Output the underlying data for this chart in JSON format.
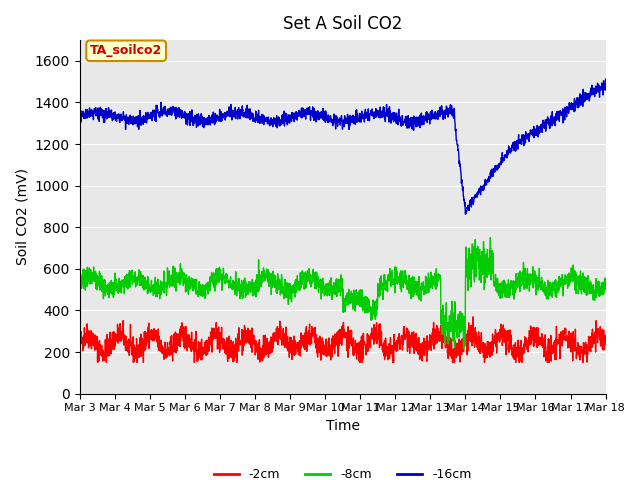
{
  "title": "Set A Soil CO2",
  "xlabel": "Time",
  "ylabel": "Soil CO2 (mV)",
  "ylim": [
    0,
    1700
  ],
  "yticks": [
    0,
    200,
    400,
    600,
    800,
    1000,
    1200,
    1400,
    1600
  ],
  "x_labels": [
    "Mar 3",
    "Mar 4",
    "Mar 5",
    "Mar 6",
    "Mar 7",
    "Mar 8",
    "Mar 9",
    "Mar 10",
    "Mar 11",
    "Mar 12",
    "Mar 13",
    "Mar 14",
    "Mar 15",
    "Mar 16",
    "Mar 17",
    "Mar 18"
  ],
  "colors": {
    "red": "#ff0000",
    "green": "#00cc00",
    "blue": "#0000cc"
  },
  "annotation_text": "TA_soilco2",
  "annotation_bg": "#ffffcc",
  "annotation_border": "#cc8800",
  "bg_color": "#e8e8e8",
  "legend_labels": [
    "-2cm",
    "-8cm",
    "-16cm"
  ],
  "line_width": 1.0
}
